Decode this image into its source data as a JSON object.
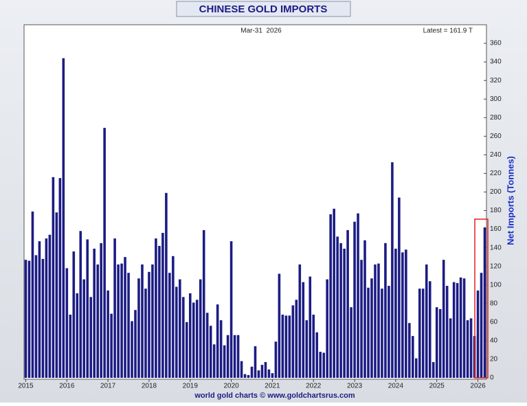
{
  "chart_data": {
    "type": "bar",
    "title": "CHINESE GOLD IMPORTS",
    "subtitle": "Mar-31  2026",
    "annotation": "Latest = 161.9 T",
    "y_label": "Net Imports (Tonnes)",
    "footer": "world gold charts © www.goldchartsrus.com",
    "color": "#1c1c84",
    "grid": false,
    "categories": [
      "2015",
      null,
      null,
      null,
      null,
      null,
      null,
      null,
      null,
      null,
      null,
      null,
      "2016",
      null,
      null,
      null,
      null,
      null,
      null,
      null,
      null,
      null,
      null,
      null,
      "2017",
      null,
      null,
      null,
      null,
      null,
      null,
      null,
      null,
      null,
      null,
      null,
      "2018",
      null,
      null,
      null,
      null,
      null,
      null,
      null,
      null,
      null,
      null,
      null,
      "2019",
      null,
      null,
      null,
      null,
      null,
      null,
      null,
      null,
      null,
      null,
      null,
      "2020",
      null,
      null,
      null,
      null,
      null,
      null,
      null,
      null,
      null,
      null,
      null,
      "2021",
      null,
      null,
      null,
      null,
      null,
      null,
      null,
      null,
      null,
      null,
      null,
      "2022",
      null,
      null,
      null,
      null,
      null,
      null,
      null,
      null,
      null,
      null,
      null,
      "2023",
      null,
      null,
      null,
      null,
      null,
      null,
      null,
      null,
      null,
      null,
      null,
      "2024",
      null,
      null,
      null,
      null,
      null,
      null,
      null,
      null,
      null,
      null,
      null,
      "2025",
      null,
      null,
      null,
      null,
      null,
      null,
      null,
      null,
      null,
      null,
      null,
      "2026",
      null,
      null
    ],
    "values": [
      127,
      126,
      179,
      132,
      147,
      128,
      150,
      154,
      216,
      178,
      215,
      344,
      118,
      68,
      136,
      91,
      158,
      106,
      149,
      87,
      139,
      122,
      145,
      269,
      94,
      69,
      150,
      122,
      123,
      130,
      113,
      61,
      73,
      107,
      122,
      96,
      114,
      122,
      150,
      142,
      156,
      199,
      113,
      131,
      98,
      106,
      87,
      60,
      91,
      81,
      84,
      106,
      159,
      70,
      56,
      36,
      79,
      62,
      35,
      46,
      147,
      46,
      46,
      18,
      4,
      3,
      12,
      34,
      8,
      14,
      17,
      9,
      5,
      39,
      112,
      68,
      67,
      67,
      78,
      84,
      122,
      103,
      62,
      109,
      68,
      49,
      28,
      27,
      106,
      176,
      182,
      152,
      145,
      139,
      159,
      76,
      168,
      177,
      127,
      148,
      97,
      107,
      122,
      123,
      96,
      145,
      99,
      232,
      139,
      194,
      135,
      138,
      59,
      45,
      21,
      96,
      96,
      122,
      104,
      17,
      76,
      74,
      127,
      99,
      64,
      103,
      102,
      108,
      107,
      62,
      64,
      45,
      94,
      113,
      161.9
    ],
    "ylim": [
      0,
      380
    ],
    "yticks": [
      0,
      20,
      40,
      60,
      80,
      100,
      120,
      140,
      160,
      180,
      200,
      220,
      240,
      260,
      280,
      300,
      320,
      340,
      360
    ]
  }
}
